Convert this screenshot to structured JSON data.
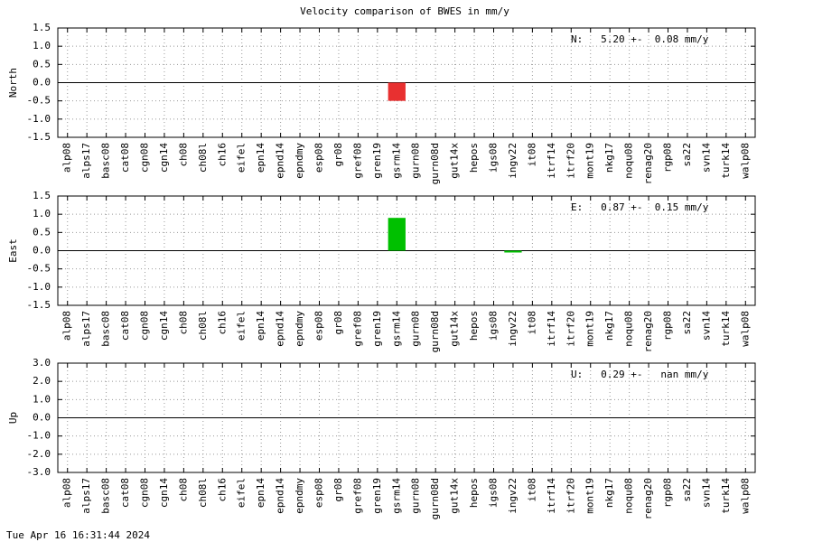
{
  "title": "Velocity comparison of BWES in mm/y",
  "timestamp": "Tue Apr 16 16:31:44 2024",
  "chart_data": [
    {
      "type": "bar",
      "ylabel": "North",
      "annotation": "N:   5.20 +-  0.08 mm/y",
      "color": "#e83030",
      "grid": true,
      "categories": [
        "alp08",
        "alps17",
        "basc08",
        "cat08",
        "cgn08",
        "cgn14",
        "ch08",
        "ch08l",
        "ch16",
        "eifel",
        "epn14",
        "epnd14",
        "epndmy",
        "esp08",
        "gr08",
        "gref08",
        "gren19",
        "gsrm14",
        "gurn08",
        "gurn08d",
        "gut14x",
        "hepos",
        "igs08",
        "ingv22",
        "it08",
        "itrf14",
        "itrf20",
        "mont19",
        "nkg17",
        "noqu08",
        "renag20",
        "rgp08",
        "sa22",
        "svn14",
        "turk14",
        "walp08"
      ],
      "values": [
        0,
        0,
        0,
        0,
        0,
        0,
        0,
        0,
        0,
        0,
        0,
        0,
        0,
        0,
        0,
        0,
        0,
        -0.5,
        0,
        0,
        0,
        0,
        0,
        0,
        0,
        0,
        0,
        0,
        0,
        0,
        0,
        0,
        0,
        0,
        0,
        0
      ],
      "ylim": [
        -1.5,
        1.5
      ],
      "yticks": [
        {
          "value": -1.5,
          "label": "-1.5"
        },
        {
          "value": -1,
          "label": "-1.0"
        },
        {
          "value": -0.5,
          "label": "-0.5"
        },
        {
          "value": 0,
          "label": "0.0"
        },
        {
          "value": 0.5,
          "label": "0.5"
        },
        {
          "value": 1,
          "label": "1.0"
        },
        {
          "value": 1.5,
          "label": "1.5"
        }
      ]
    },
    {
      "type": "bar",
      "ylabel": "East",
      "annotation": "E:   0.87 +-  0.15 mm/y",
      "color": "#00c000",
      "grid": true,
      "categories": [
        "alp08",
        "alps17",
        "basc08",
        "cat08",
        "cgn08",
        "cgn14",
        "ch08",
        "ch08l",
        "ch16",
        "eifel",
        "epn14",
        "epnd14",
        "epndmy",
        "esp08",
        "gr08",
        "gref08",
        "gren19",
        "gsrm14",
        "gurn08",
        "gurn08d",
        "gut14x",
        "hepos",
        "igs08",
        "ingv22",
        "it08",
        "itrf14",
        "itrf20",
        "mont19",
        "nkg17",
        "noqu08",
        "renag20",
        "rgp08",
        "sa22",
        "svn14",
        "turk14",
        "walp08"
      ],
      "values": [
        0,
        0,
        0,
        0,
        0,
        0,
        0,
        0,
        0,
        0,
        0,
        0,
        0,
        0,
        0,
        0,
        0,
        0.9,
        0,
        0,
        0,
        0,
        0,
        -0.05,
        0,
        0,
        0,
        0,
        0,
        0,
        0,
        0,
        0,
        0,
        0,
        0
      ],
      "ylim": [
        -1.5,
        1.5
      ],
      "yticks": [
        {
          "value": -1.5,
          "label": "-1.5"
        },
        {
          "value": -1,
          "label": "-1.0"
        },
        {
          "value": -0.5,
          "label": "-0.5"
        },
        {
          "value": 0,
          "label": "0.0"
        },
        {
          "value": 0.5,
          "label": "0.5"
        },
        {
          "value": 1,
          "label": "1.0"
        },
        {
          "value": 1.5,
          "label": "1.5"
        }
      ]
    },
    {
      "type": "bar",
      "ylabel": "Up",
      "annotation": "U:   0.29 +-   nan mm/y",
      "grid": true,
      "categories": [
        "alp08",
        "alps17",
        "basc08",
        "cat08",
        "cgn08",
        "cgn14",
        "ch08",
        "ch08l",
        "ch16",
        "eifel",
        "epn14",
        "epnd14",
        "epndmy",
        "esp08",
        "gr08",
        "gref08",
        "gren19",
        "gsrm14",
        "gurn08",
        "gurn08d",
        "gut14x",
        "hepos",
        "igs08",
        "ingv22",
        "it08",
        "itrf14",
        "itrf20",
        "mont19",
        "nkg17",
        "noqu08",
        "renag20",
        "rgp08",
        "sa22",
        "svn14",
        "turk14",
        "walp08"
      ],
      "values": [
        0,
        0,
        0,
        0,
        0,
        0,
        0,
        0,
        0,
        0,
        0,
        0,
        0,
        0,
        0,
        0,
        0,
        0,
        0,
        0,
        0,
        0,
        0,
        0,
        0,
        0,
        0,
        0,
        0,
        0,
        0,
        0,
        0,
        0,
        0,
        0
      ],
      "ylim": [
        -3,
        3
      ],
      "yticks": [
        {
          "value": -3,
          "label": "-3.0"
        },
        {
          "value": -2,
          "label": "-2.0"
        },
        {
          "value": -1,
          "label": "-1.0"
        },
        {
          "value": 0,
          "label": "0.0"
        },
        {
          "value": 1,
          "label": "1.0"
        },
        {
          "value": 2,
          "label": "2.0"
        },
        {
          "value": 3,
          "label": "3.0"
        }
      ]
    }
  ]
}
